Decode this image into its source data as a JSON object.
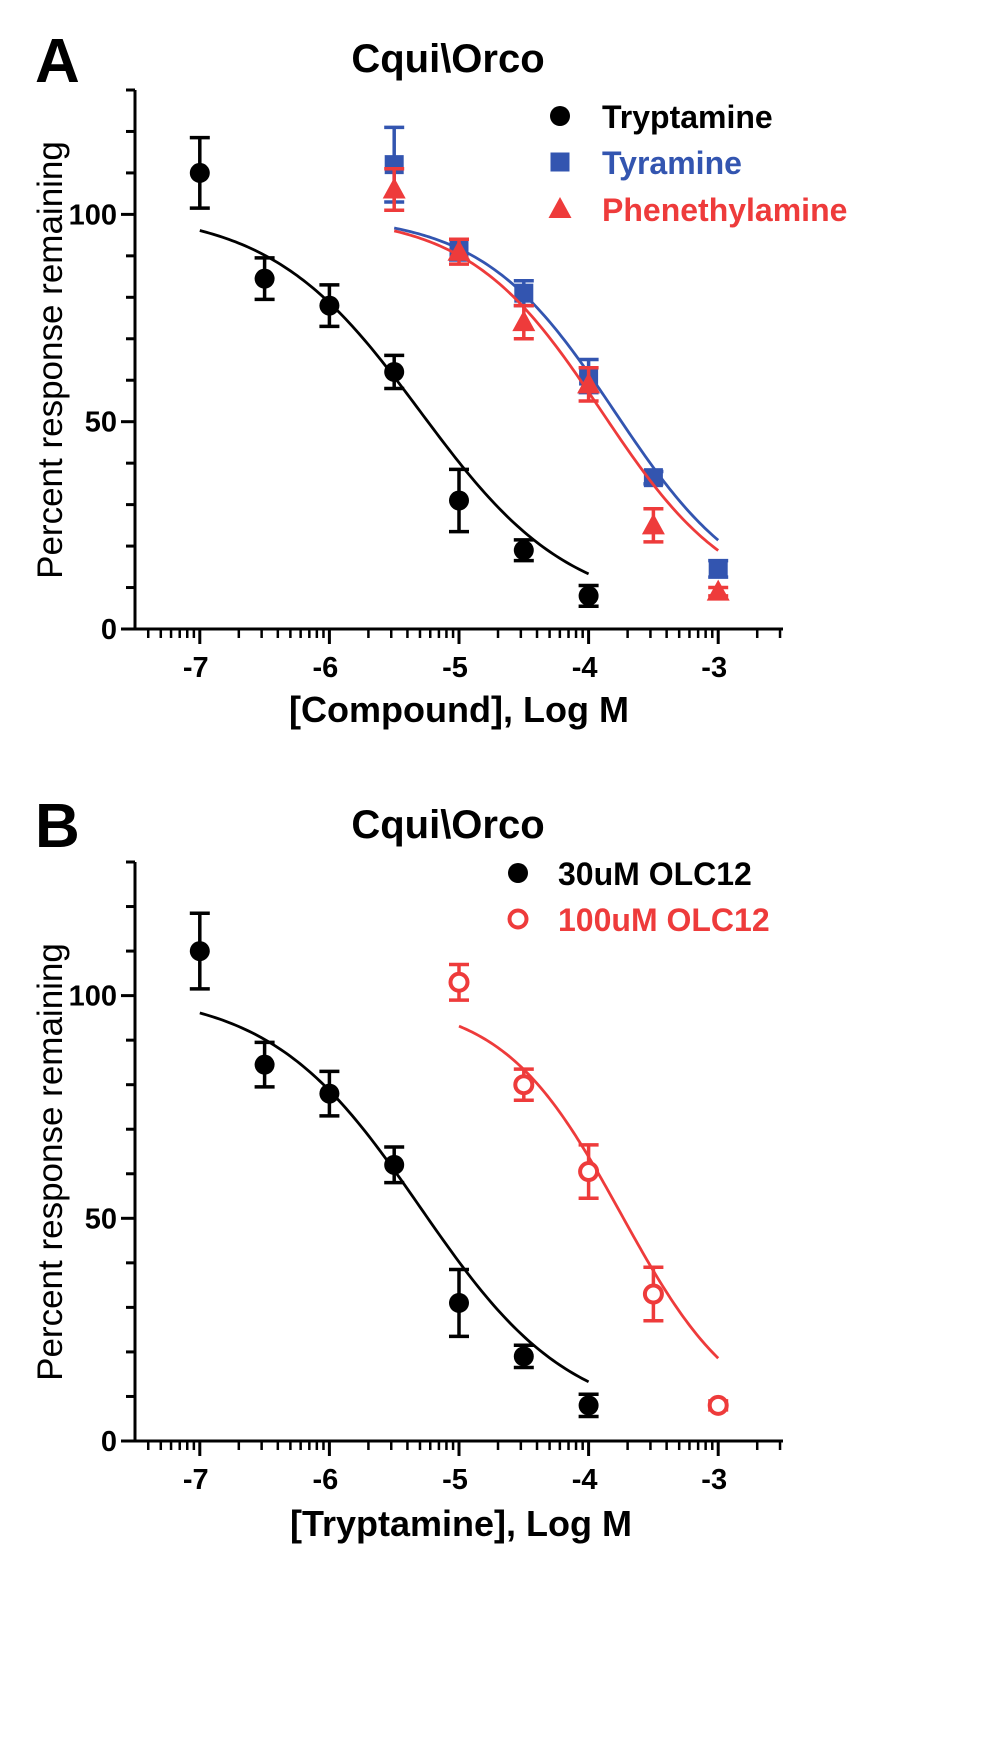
{
  "colors": {
    "black": "#000000",
    "blue": "#3355b0",
    "red": "#ee3b3b"
  },
  "chart_data": [
    {
      "type": "scatter",
      "panel": "A",
      "title": "Cqui\\Orco",
      "xlabel": "[Compound], Log M",
      "ylabel": "Percent response remaining",
      "xlim": [
        -7.5,
        -2.5
      ],
      "ylim": [
        0,
        130
      ],
      "xticks": [
        -7,
        -6,
        -5,
        -4,
        -3
      ],
      "xtick_labels": [
        "-7",
        "-6",
        "-5",
        "-4",
        "-3"
      ],
      "yticks": [
        0,
        50,
        100
      ],
      "ytick_labels": [
        "0",
        "50",
        "100"
      ],
      "legend_position": "top-right",
      "series": [
        {
          "name": "Tryptamine",
          "color": "#000000",
          "marker": "circle-filled",
          "x": [
            -7,
            -6.5,
            -6,
            -5.5,
            -5,
            -4.5,
            -4
          ],
          "y": [
            110,
            84.5,
            78,
            62,
            31,
            19,
            8
          ],
          "err": [
            8.5,
            5,
            5,
            4,
            7.5,
            2.5,
            2.5
          ],
          "fit": {
            "top": 101,
            "bottom": 4,
            "logIC50": -5.3,
            "hill": 0.75,
            "xrange": [
              -7,
              -4
            ]
          }
        },
        {
          "name": "Tyramine",
          "color": "#3355b0",
          "marker": "square-filled",
          "x": [
            -5.5,
            -5,
            -4.5,
            -4,
            -3.5,
            -3
          ],
          "y": [
            112,
            91.5,
            81,
            61,
            36.5,
            14.5
          ],
          "err": [
            9,
            2.5,
            3,
            4,
            1.5,
            2
          ],
          "fit": {
            "top": 100,
            "bottom": 5,
            "logIC50": -3.8,
            "hill": 0.85,
            "xrange": [
              -5.5,
              -3
            ]
          }
        },
        {
          "name": "Phenethylamine",
          "color": "#ee3b3b",
          "marker": "triangle-filled",
          "x": [
            -5.5,
            -5,
            -4.5,
            -4,
            -3.5,
            -3
          ],
          "y": [
            106,
            91,
            74,
            59,
            25,
            9
          ],
          "err": [
            5,
            3,
            4,
            4,
            4,
            1
          ],
          "fit": {
            "top": 100,
            "bottom": 5,
            "logIC50": -3.9,
            "hill": 0.85,
            "xrange": [
              -5.5,
              -3
            ]
          }
        }
      ]
    },
    {
      "type": "scatter",
      "panel": "B",
      "title": "Cqui\\Orco",
      "xlabel": "[Tryptamine], Log M",
      "ylabel": "Percent response remaining",
      "xlim": [
        -7.5,
        -2.5
      ],
      "ylim": [
        0,
        130
      ],
      "xticks": [
        -7,
        -6,
        -5,
        -4,
        -3
      ],
      "xtick_labels": [
        "-7",
        "-6",
        "-5",
        "-4",
        "-3"
      ],
      "yticks": [
        0,
        50,
        100
      ],
      "ytick_labels": [
        "0",
        "50",
        "100"
      ],
      "legend_position": "top-right",
      "series": [
        {
          "name": "30uM OLC12",
          "color": "#000000",
          "marker": "circle-filled",
          "x": [
            -7,
            -6.5,
            -6,
            -5.5,
            -5,
            -4.5,
            -4
          ],
          "y": [
            110,
            84.5,
            78,
            62,
            31,
            19,
            8
          ],
          "err": [
            8.5,
            5,
            5,
            4,
            7.5,
            2.5,
            2.5
          ],
          "fit": {
            "top": 101,
            "bottom": 4,
            "logIC50": -5.3,
            "hill": 0.75,
            "xrange": [
              -7,
              -4
            ]
          }
        },
        {
          "name": "100uM OLC12",
          "color": "#ee3b3b",
          "marker": "circle-open",
          "x": [
            -5,
            -4.5,
            -4,
            -3.5,
            -3
          ],
          "y": [
            103,
            80,
            60.5,
            33,
            8
          ],
          "err": [
            4,
            3.5,
            6,
            6,
            1
          ],
          "fit": {
            "top": 99,
            "bottom": 3,
            "logIC50": -3.75,
            "hill": 0.95,
            "xrange": [
              -5,
              -3
            ]
          }
        }
      ]
    }
  ]
}
